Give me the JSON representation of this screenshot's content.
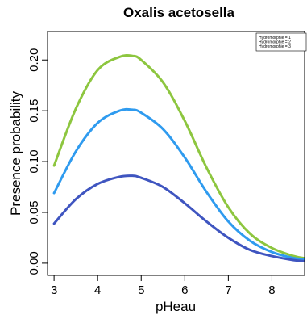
{
  "chart_data": {
    "type": "line",
    "title": "Oxalis acetosella",
    "xlabel": "pHeau",
    "ylabel": "Presence probability",
    "xlim": [
      2.85,
      8.75
    ],
    "ylim": [
      -0.012,
      0.228
    ],
    "xticks": [
      3,
      4,
      5,
      6,
      7,
      8
    ],
    "xtick_labels": [
      "3",
      "4",
      "5",
      "6",
      "7",
      "8"
    ],
    "yticks": [
      0.0,
      0.05,
      0.1,
      0.15,
      0.2
    ],
    "ytick_labels": [
      "0.00",
      "0.05",
      "0.10",
      "0.15",
      "0.20"
    ],
    "legend_position": "top-right",
    "legend": [
      "Hydromorphie = 1",
      "Hydromorphie = 2",
      "Hydromorphie = 3"
    ],
    "series": [
      {
        "name": "Hydromorphie = 1",
        "color": "#8dc63f",
        "x": [
          3.0,
          3.5,
          4.0,
          4.5,
          4.8,
          5.0,
          5.5,
          6.0,
          6.5,
          7.0,
          7.5,
          8.0,
          8.5,
          8.75
        ],
        "y": [
          0.096,
          0.152,
          0.19,
          0.203,
          0.204,
          0.2,
          0.178,
          0.14,
          0.094,
          0.055,
          0.029,
          0.015,
          0.007,
          0.005
        ]
      },
      {
        "name": "Hydromorphie = 2",
        "color": "#2f9bef",
        "x": [
          3.0,
          3.5,
          4.0,
          4.5,
          4.8,
          5.0,
          5.5,
          6.0,
          6.5,
          7.0,
          7.5,
          8.0,
          8.5,
          8.75
        ],
        "y": [
          0.069,
          0.11,
          0.138,
          0.15,
          0.151,
          0.148,
          0.132,
          0.104,
          0.07,
          0.041,
          0.022,
          0.011,
          0.005,
          0.004
        ]
      },
      {
        "name": "Hydromorphie = 3",
        "color": "#3f55c0",
        "x": [
          3.0,
          3.5,
          4.0,
          4.5,
          4.8,
          5.0,
          5.5,
          6.0,
          6.5,
          7.0,
          7.5,
          8.0,
          8.5,
          8.75
        ],
        "y": [
          0.039,
          0.063,
          0.078,
          0.085,
          0.086,
          0.084,
          0.075,
          0.059,
          0.041,
          0.025,
          0.013,
          0.007,
          0.003,
          0.002
        ]
      }
    ]
  }
}
